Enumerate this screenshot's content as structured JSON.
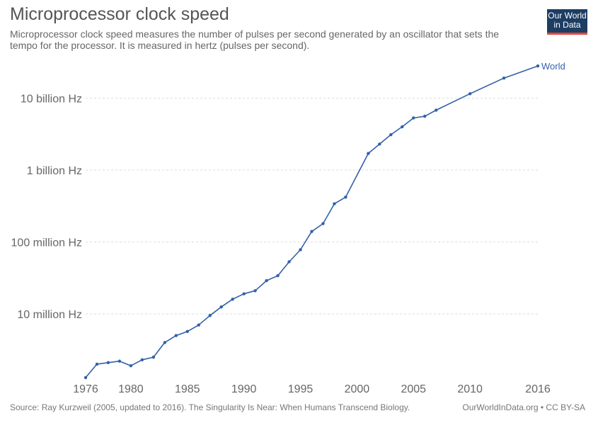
{
  "header": {
    "title": "Microprocessor clock speed",
    "subtitle": "Microprocessor clock speed measures the number of pulses per second generated by an oscillator that sets the tempo for the processor. It is measured in hertz (pulses per second)."
  },
  "logo": {
    "line1": "Our World",
    "line2": "in Data"
  },
  "footer": {
    "source": "Source: Ray Kurzweil (2005, updated to 2016). The Singularity Is Near: When Humans Transcend Biology.",
    "credit": "OurWorldInData.org • CC BY-SA"
  },
  "colors": {
    "line": "#3360a9",
    "grid": "#dddddd",
    "text": "#555555",
    "brand": "#1d3d63",
    "brand_accent": "#e5473e"
  },
  "chart_data": {
    "type": "line",
    "title": "Microprocessor clock speed",
    "y_scale": "log",
    "xlim": [
      1976,
      2016
    ],
    "ylim": [
      1000000,
      30000000000
    ],
    "x_ticks": [
      1976,
      1980,
      1985,
      1990,
      1995,
      2000,
      2005,
      2010,
      2016
    ],
    "x_tick_labels": [
      "1976",
      "1980",
      "1985",
      "1990",
      "1995",
      "2000",
      "2005",
      "2010",
      "2016"
    ],
    "y_ticks": [
      10000000,
      100000000,
      1000000000,
      10000000000
    ],
    "y_tick_labels": [
      "10 million Hz",
      "100 million Hz",
      "1 billion Hz",
      "10 billion Hz"
    ],
    "grid": "horizontal dashed",
    "series": [
      {
        "name": "World",
        "x": [
          1976,
          1977,
          1978,
          1979,
          1980,
          1981,
          1982,
          1983,
          1984,
          1985,
          1986,
          1987,
          1988,
          1989,
          1990,
          1991,
          1992,
          1993,
          1994,
          1995,
          1996,
          1997,
          1998,
          1999,
          2001,
          2002,
          2003,
          2004,
          2005,
          2006,
          2007,
          2010,
          2013,
          2016
        ],
        "y": [
          1300000,
          2000000,
          2100000,
          2200000,
          1900000,
          2300000,
          2500000,
          4000000,
          5000000,
          5700000,
          7000000,
          9500000,
          12500000,
          16000000,
          19000000,
          21000000,
          29000000,
          34000000,
          53000000,
          78000000,
          140000000,
          180000000,
          340000000,
          420000000,
          1700000000,
          2300000000,
          3100000000,
          4000000000,
          5300000000,
          5600000000,
          6800000000,
          11500000000,
          19000000000,
          28000000000
        ]
      }
    ]
  }
}
